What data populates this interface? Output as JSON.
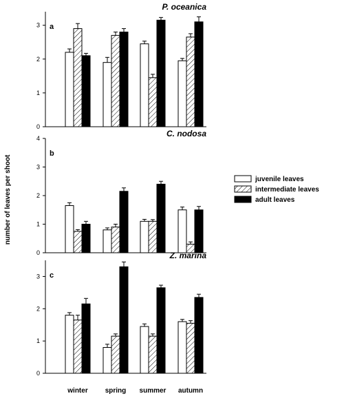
{
  "chart_data": {
    "type": "bar",
    "categories": [
      "winter",
      "spring",
      "summer",
      "autumn"
    ],
    "ylabel": "number of leaves per shoot",
    "legend": {
      "placement": "right",
      "entries": [
        "juvenile leaves",
        "intermediate leaves",
        "adult leaves"
      ]
    },
    "series_styles": [
      {
        "fill": "#ffffff",
        "pattern": "none"
      },
      {
        "fill": "#ffffff",
        "pattern": "diagonal-hatch"
      },
      {
        "fill": "#000000",
        "pattern": "none"
      }
    ],
    "panels": [
      {
        "letter": "a",
        "species": "P. oceanica",
        "ylim": [
          0,
          3.4
        ],
        "yticks": [
          "0",
          "1",
          "2",
          "3"
        ],
        "series": [
          {
            "name": "juvenile leaves",
            "values": [
              2.2,
              1.9,
              2.45,
              1.95
            ],
            "errors": [
              0.1,
              0.15,
              0.08,
              0.07
            ]
          },
          {
            "name": "intermediate leaves",
            "values": [
              2.9,
              2.7,
              1.45,
              2.65
            ],
            "errors": [
              0.15,
              0.1,
              0.1,
              0.1
            ]
          },
          {
            "name": "adult leaves",
            "values": [
              2.1,
              2.8,
              3.15,
              3.1
            ],
            "errors": [
              0.07,
              0.1,
              0.08,
              0.15
            ]
          }
        ]
      },
      {
        "letter": "b",
        "species": "C. nodosa",
        "ylim": [
          0,
          4
        ],
        "yticks": [
          "0",
          "1",
          "2",
          "3",
          "4"
        ],
        "series": [
          {
            "name": "juvenile leaves",
            "values": [
              1.65,
              0.8,
              1.1,
              1.5
            ],
            "errors": [
              0.1,
              0.07,
              0.07,
              0.1
            ]
          },
          {
            "name": "intermediate leaves",
            "values": [
              0.75,
              0.9,
              1.1,
              0.3
            ],
            "errors": [
              0.06,
              0.1,
              0.06,
              0.08
            ]
          },
          {
            "name": "adult leaves",
            "values": [
              1.0,
              2.15,
              2.4,
              1.5
            ],
            "errors": [
              0.1,
              0.12,
              0.1,
              0.12
            ]
          }
        ]
      },
      {
        "letter": "c",
        "species": "Z. marina",
        "ylim": [
          0,
          3.5
        ],
        "yticks": [
          "0",
          "1",
          "2",
          "3"
        ],
        "series": [
          {
            "name": "juvenile leaves",
            "values": [
              1.8,
              0.8,
              1.45,
              1.6
            ],
            "errors": [
              0.08,
              0.1,
              0.08,
              0.07
            ]
          },
          {
            "name": "intermediate leaves",
            "values": [
              1.65,
              1.15,
              1.15,
              1.55
            ],
            "errors": [
              0.15,
              0.07,
              0.07,
              0.08
            ]
          },
          {
            "name": "adult leaves",
            "values": [
              2.15,
              3.3,
              2.65,
              2.35
            ],
            "errors": [
              0.17,
              0.15,
              0.08,
              0.1
            ]
          }
        ]
      }
    ]
  }
}
